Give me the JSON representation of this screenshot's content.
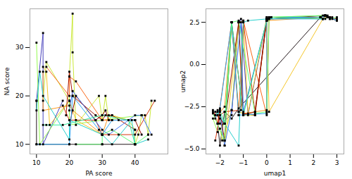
{
  "chart_data": [
    {
      "type": "line",
      "marker": "square",
      "xlabel": "PA score",
      "ylabel": "NA score",
      "xlim": [
        8,
        50
      ],
      "ylim": [
        8,
        38
      ],
      "xticks": [
        10,
        20,
        30,
        40
      ],
      "yticks": [
        10,
        20,
        30
      ],
      "series": [
        {
          "x": [
            10,
            10,
            20,
            30,
            40
          ],
          "values": [
            19,
            10,
            10,
            10,
            10
          ]
        },
        {
          "x": [
            10,
            12,
            12,
            18
          ],
          "values": [
            19,
            33,
            10,
            19
          ]
        },
        {
          "x": [
            10,
            11,
            20,
            20,
            30,
            42
          ],
          "values": [
            31,
            10,
            19,
            14,
            15,
            16
          ]
        },
        {
          "x": [
            12,
            13,
            20,
            20,
            21,
            21,
            22,
            29,
            30,
            31,
            32,
            33,
            38,
            40,
            40,
            41,
            42,
            43,
            44,
            45
          ],
          "values": [
            19,
            27,
            19,
            24,
            37,
            29,
            14,
            20,
            15,
            20,
            15,
            16,
            15,
            13,
            10,
            12,
            16,
            16,
            12,
            19
          ]
        },
        {
          "x": [
            12,
            13,
            14,
            20,
            22,
            30
          ],
          "values": [
            26,
            25,
            14,
            19,
            15,
            12
          ]
        },
        {
          "x": [
            12,
            12,
            20,
            21,
            30,
            32,
            38
          ],
          "values": [
            25,
            17,
            18,
            17,
            12,
            16,
            15
          ]
        },
        {
          "x": [
            13,
            20,
            20,
            22,
            30,
            33,
            40
          ],
          "values": [
            26,
            20,
            24,
            23,
            15,
            15,
            15
          ]
        },
        {
          "x": [
            18,
            20,
            28,
            30,
            35,
            40,
            46
          ],
          "values": [
            18,
            15,
            15,
            12,
            12,
            12,
            19
          ]
        },
        {
          "x": [
            19,
            20,
            21,
            28,
            30,
            31,
            33,
            40
          ],
          "values": [
            16,
            25,
            20,
            16,
            15,
            16,
            16,
            13
          ]
        },
        {
          "x": [
            20,
            22,
            28,
            30,
            31,
            32,
            35,
            40,
            42
          ],
          "values": [
            14,
            20,
            15,
            16,
            17,
            15,
            15,
            15,
            12
          ]
        },
        {
          "x": [
            20,
            21,
            30,
            32,
            40,
            42,
            45
          ],
          "values": [
            17,
            21,
            13,
            12,
            16,
            16,
            12
          ]
        },
        {
          "x": [
            10,
            20,
            21,
            29,
            30,
            33,
            40
          ],
          "values": [
            10,
            10,
            20,
            13,
            12,
            15,
            15
          ]
        },
        {
          "x": [
            10,
            11,
            12,
            20,
            20,
            30,
            33,
            39,
            40,
            44
          ],
          "values": [
            17,
            25,
            20,
            11,
            15,
            12,
            10,
            15,
            10,
            11
          ]
        },
        {
          "x": [
            12,
            13,
            18,
            30,
            38,
            40
          ],
          "values": [
            14,
            14,
            14,
            16,
            15,
            10
          ]
        },
        {
          "x": [
            22,
            30,
            30,
            30,
            33,
            40,
            44
          ],
          "values": [
            10,
            10,
            12,
            12,
            13,
            10,
            12
          ]
        }
      ]
    },
    {
      "type": "line",
      "marker": "square",
      "xlabel": "umap1",
      "ylabel": "umap2",
      "xlim": [
        -2.6,
        3.3
      ],
      "ylim": [
        -5.3,
        3.3
      ],
      "xticks": [
        -2,
        -1,
        0,
        1,
        2,
        3
      ],
      "yticks": [
        {
          "value": -5.0,
          "label": "−5.0"
        },
        -2.5,
        {
          "value": 0.0,
          "label": "0.0"
        },
        2.5
      ],
      "series": [
        {
          "x": [
            -2.1,
            -2.0,
            -1.8,
            -1.5,
            -1.2,
            2.3,
            2.5,
            2.6,
            2.8,
            3.0
          ],
          "values": [
            -3.5,
            -4.8,
            -2.8,
            -3.2,
            -2.6,
            2.8,
            2.9,
            2.8,
            2.7,
            2.6
          ]
        },
        {
          "x": [
            -2.2,
            -2.1,
            -2.0,
            -1.5,
            -1.2,
            -1.1,
            -0.8,
            0.0,
            2.3,
            2.5
          ],
          "values": [
            -3.0,
            -2.7,
            -3.5,
            -3.0,
            2.5,
            2.7,
            -3.0,
            2.7,
            2.8,
            2.9
          ]
        },
        {
          "x": [
            -2.3,
            -2.1,
            -1.8,
            -1.5,
            -1.2,
            -1.0,
            0.0,
            0.1,
            2.4,
            2.6
          ],
          "values": [
            -3.2,
            -4.0,
            -3.5,
            2.5,
            -2.8,
            -2.9,
            2.6,
            2.8,
            2.9,
            2.8
          ]
        },
        {
          "x": [
            -2.0,
            -1.9,
            -1.5,
            -1.2,
            -1.0,
            -0.5,
            0.0,
            2.3,
            2.5,
            2.7
          ],
          "values": [
            -3.8,
            -4.5,
            -2.7,
            2.5,
            -3.0,
            -3.0,
            2.7,
            2.8,
            2.9,
            2.7
          ]
        },
        {
          "x": [
            -2.2,
            -2.0,
            -1.8,
            -1.2,
            -1.0,
            -0.8,
            0.0,
            0.1,
            2.4,
            2.6
          ],
          "values": [
            -2.8,
            -3.2,
            -4.8,
            2.5,
            2.6,
            -2.9,
            2.8,
            -2.8,
            2.7,
            2.9
          ]
        },
        {
          "x": [
            -2.1,
            -1.8,
            -1.5,
            -1.2,
            -1.0,
            0.0,
            0.0,
            2.3,
            2.5
          ],
          "values": [
            -3.0,
            -2.5,
            2.5,
            -2.8,
            -2.9,
            -2.7,
            2.6,
            2.8,
            2.7
          ]
        },
        {
          "x": [
            -2.3,
            -2.1,
            -1.5,
            -1.2,
            -1.0,
            0.0,
            0.1,
            2.3,
            2.5,
            2.8
          ],
          "values": [
            -2.7,
            -3.5,
            2.5,
            -3.0,
            2.6,
            -3.0,
            2.7,
            2.8,
            2.9,
            2.8
          ]
        },
        {
          "x": [
            -2.2,
            -2.0,
            -1.8,
            -1.1,
            -1.0,
            -0.5,
            0.0,
            0.2,
            2.4,
            2.6
          ],
          "values": [
            -4.5,
            -3.0,
            -2.8,
            -2.7,
            2.5,
            -2.8,
            2.6,
            2.8,
            2.7,
            2.8
          ]
        },
        {
          "x": [
            -2.1,
            -2.0,
            -1.8,
            -1.5,
            -1.0,
            -0.5,
            0.0,
            2.3
          ],
          "values": [
            -3.5,
            -2.8,
            -4.5,
            2.5,
            -2.9,
            -3.0,
            2.7,
            2.8
          ]
        },
        {
          "x": [
            -2.3,
            -1.8,
            -1.2,
            -1.0,
            -0.5,
            0.0,
            0.1,
            2.5,
            2.7,
            3.0
          ],
          "values": [
            -2.8,
            -3.5,
            2.5,
            -3.0,
            -2.8,
            2.8,
            2.7,
            2.9,
            2.8,
            2.7
          ]
        },
        {
          "x": [
            -2.0,
            -1.8,
            -1.5,
            -1.1,
            -1.0,
            0.0,
            0.1,
            2.3,
            2.5
          ],
          "values": [
            -3.0,
            -4.8,
            -2.7,
            2.5,
            -2.8,
            2.6,
            2.8,
            2.8,
            2.9
          ]
        },
        {
          "x": [
            -2.2,
            -2.0,
            -1.5,
            -1.2,
            0.0,
            0.0,
            2.4,
            2.5,
            2.7,
            3.0
          ],
          "values": [
            -3.2,
            -2.6,
            2.5,
            -3.0,
            -2.9,
            2.7,
            2.7,
            2.9,
            2.8,
            2.6
          ]
        },
        {
          "x": [
            -2.1,
            -1.8,
            -1.2,
            -1.0,
            -0.8,
            0.0,
            2.3,
            2.5,
            2.6
          ],
          "values": [
            -2.8,
            -3.5,
            -4.8,
            2.5,
            2.6,
            2.7,
            2.8,
            2.9,
            2.8
          ]
        },
        {
          "x": [
            -2.2,
            -2.0,
            -1.8,
            -1.5,
            -1.0,
            0.0,
            0.2,
            2.4,
            2.7
          ],
          "values": [
            -3.0,
            -2.7,
            -3.5,
            2.5,
            -3.0,
            2.6,
            2.8,
            2.7,
            2.8
          ]
        },
        {
          "x": [
            -2.3,
            -1.8,
            -1.5,
            -1.2,
            -0.5,
            0.0,
            0.1,
            2.5,
            2.7,
            3.0
          ],
          "values": [
            -2.9,
            -4.5,
            2.5,
            2.6,
            -2.9,
            -2.8,
            2.8,
            2.9,
            2.7,
            2.8
          ]
        }
      ]
    }
  ]
}
